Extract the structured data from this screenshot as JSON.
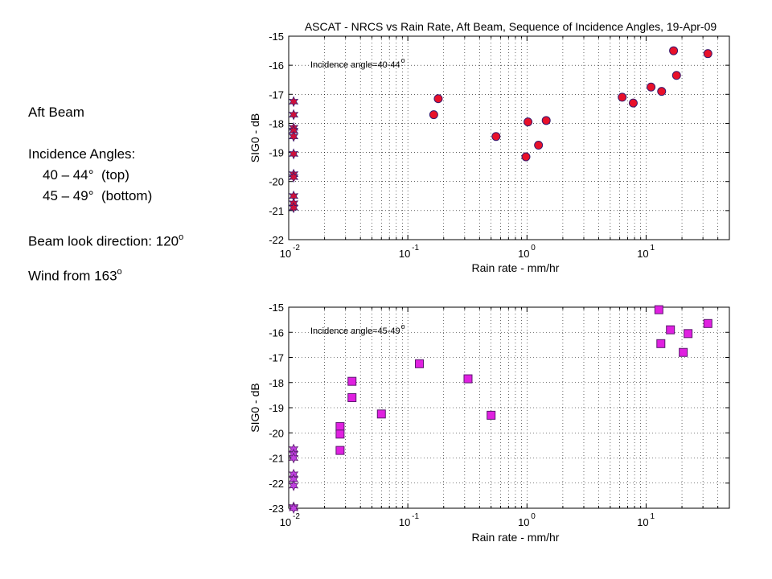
{
  "sidebar": {
    "heading": "Aft Beam",
    "incidence_label": "Incidence Angles:",
    "angle_top": "40 – 44°  (top)",
    "angle_bottom": "45 – 49°  (bottom)",
    "beam_look_prefix": "Beam look direction: 120",
    "beam_look_sup": "o",
    "wind_prefix": "Wind from 163",
    "wind_sup": "o"
  },
  "chart_data": [
    {
      "type": "scatter",
      "title": "ASCAT - NRCS vs Rain Rate, Aft Beam, Sequence of Incidence Angles, 19-Apr-09",
      "annotation": "Incidence angle=40-44",
      "annotation_sup": "o",
      "xlabel": "Rain rate - mm/hr",
      "ylabel": "SIG0 - dB",
      "xscale": "log",
      "xlim": [
        0.01,
        50
      ],
      "ylim": [
        -22,
        -15
      ],
      "yticks": [
        -15,
        -16,
        -17,
        -18,
        -19,
        -20,
        -21,
        -22
      ],
      "xticks": [
        0.01,
        0.1,
        1,
        10
      ],
      "xtick_labels": [
        "10",
        "10",
        "10",
        "10"
      ],
      "xtick_exps": [
        "-2",
        "-1",
        "0",
        "1"
      ],
      "grid": true,
      "colors": {
        "marker_fill": "#e8102a",
        "marker_edge": "#3a1a6e",
        "star": "#d0103a",
        "star_edge": "#3a1a6e"
      },
      "series": [
        {
          "marker": "circle",
          "x": [
            0.165,
            0.18,
            0.55,
            0.98,
            1.02,
            1.25,
            1.45,
            6.3,
            7.8,
            11,
            13.5,
            17,
            18,
            33
          ],
          "y": [
            -17.7,
            -17.15,
            -18.45,
            -19.15,
            -17.95,
            -18.75,
            -17.9,
            -17.1,
            -17.3,
            -16.75,
            -16.9,
            -15.5,
            -16.35,
            -15.6
          ]
        },
        {
          "marker": "star",
          "x": [
            0.011,
            0.011,
            0.011,
            0.011,
            0.011,
            0.011,
            0.011,
            0.011,
            0.011,
            0.011,
            0.011
          ],
          "y": [
            -17.25,
            -17.7,
            -18.15,
            -18.25,
            -18.45,
            -19.05,
            -19.75,
            -19.85,
            -20.5,
            -20.75,
            -20.9
          ]
        }
      ]
    },
    {
      "type": "scatter",
      "annotation": "Incidence angle=45-49",
      "annotation_sup": "o",
      "xlabel": "Rain rate - mm/hr",
      "ylabel": "SIG0 - dB",
      "xscale": "log",
      "xlim": [
        0.01,
        50
      ],
      "ylim": [
        -23,
        -15
      ],
      "yticks": [
        -15,
        -16,
        -17,
        -18,
        -19,
        -20,
        -21,
        -22,
        -23
      ],
      "xticks": [
        0.01,
        0.1,
        1,
        10
      ],
      "xtick_labels": [
        "10",
        "10",
        "10",
        "10"
      ],
      "xtick_exps": [
        "-2",
        "-1",
        "0",
        "1"
      ],
      "grid": true,
      "colors": {
        "marker_fill": "#e020e0",
        "marker_edge": "#5a1a6e",
        "star": "#c040e0",
        "star_edge": "#5a1a6e"
      },
      "series": [
        {
          "marker": "square",
          "x": [
            0.027,
            0.027,
            0.027,
            0.034,
            0.034,
            0.06,
            0.125,
            0.32,
            0.5,
            12.8,
            13.3,
            16,
            20.5,
            22.5,
            33
          ],
          "y": [
            -19.75,
            -20.05,
            -20.7,
            -17.95,
            -18.6,
            -19.25,
            -17.25,
            -17.85,
            -19.3,
            -15.1,
            -16.45,
            -15.9,
            -16.8,
            -16.05,
            -15.65
          ]
        },
        {
          "marker": "star",
          "x": [
            0.011,
            0.011,
            0.011,
            0.011,
            0.011,
            0.011,
            0.011,
            0.011
          ],
          "y": [
            -20.65,
            -20.85,
            -21.0,
            -21.65,
            -21.85,
            -22.1,
            -22.95,
            -23.0
          ]
        }
      ]
    }
  ]
}
